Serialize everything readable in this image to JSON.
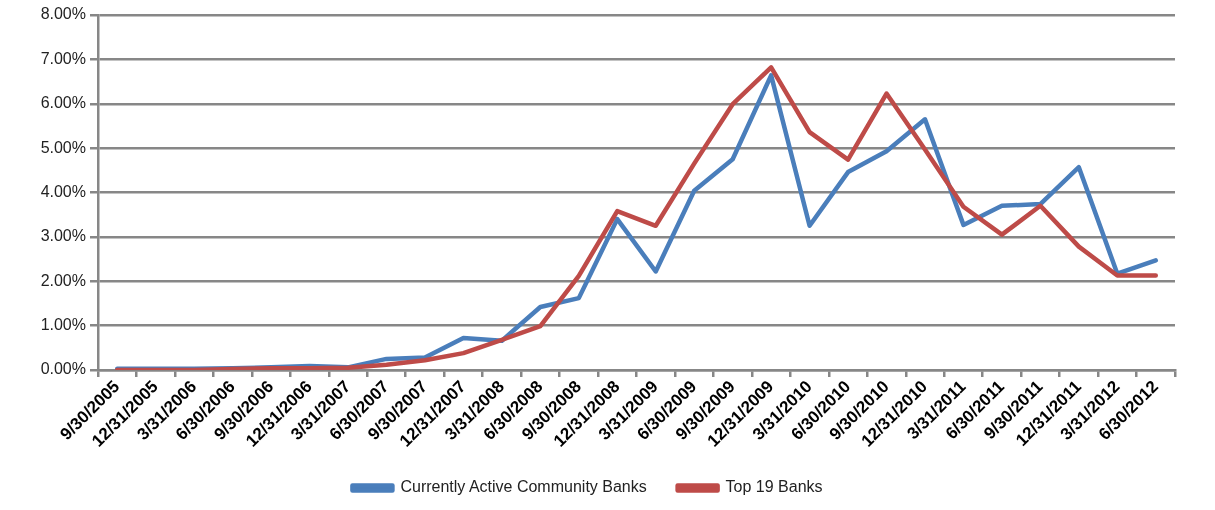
{
  "chart_data": {
    "type": "line",
    "categories": [
      "9/30/2005",
      "12/31/2005",
      "3/31/2006",
      "6/30/2006",
      "9/30/2006",
      "12/31/2006",
      "3/31/2007",
      "6/30/2007",
      "9/30/2007",
      "12/31/2007",
      "3/31/2008",
      "6/30/2008",
      "9/30/2008",
      "12/31/2008",
      "3/31/2009",
      "6/30/2009",
      "9/30/2009",
      "12/31/2009",
      "3/31/2010",
      "6/30/2010",
      "9/30/2010",
      "12/31/2010",
      "3/31/2011",
      "6/30/2011",
      "9/30/2011",
      "12/31/2011",
      "3/31/2012",
      "6/30/2012"
    ],
    "series": [
      {
        "name": "Currently Active Community Banks",
        "color": "#4a7ebb",
        "values": [
          0.03,
          0.03,
          0.03,
          0.04,
          0.06,
          0.09,
          0.06,
          0.25,
          0.28,
          0.72,
          0.66,
          1.42,
          1.62,
          3.4,
          2.22,
          4.04,
          4.75,
          6.64,
          3.25,
          4.46,
          4.93,
          5.65,
          3.27,
          3.7,
          3.74,
          4.57,
          2.17,
          2.47
        ]
      },
      {
        "name": "Top 19 Banks",
        "color": "#be4b48",
        "values": [
          0,
          0,
          0,
          0.02,
          0.04,
          0.04,
          0.05,
          0.12,
          0.22,
          0.38,
          0.68,
          0.99,
          2.12,
          3.58,
          3.25,
          4.65,
          5.99,
          6.82,
          5.36,
          4.74,
          6.23,
          4.97,
          3.68,
          3.05,
          3.7,
          2.78,
          2.13,
          2.13
        ]
      }
    ],
    "ylim": [
      0,
      8
    ],
    "yticks": [
      {
        "value": 0,
        "label": "0.00%"
      },
      {
        "value": 1,
        "label": "1.00%"
      },
      {
        "value": 2,
        "label": "2.00%"
      },
      {
        "value": 3,
        "label": "3.00%"
      },
      {
        "value": 4,
        "label": "4.00%"
      },
      {
        "value": 5,
        "label": "5.00%"
      },
      {
        "value": 6,
        "label": "6.00%"
      },
      {
        "value": 7,
        "label": "7.00%"
      },
      {
        "value": 8,
        "label": "8.00%"
      }
    ],
    "grid": "y",
    "legend": "bottom",
    "marker": "none",
    "line_style": "solid"
  }
}
